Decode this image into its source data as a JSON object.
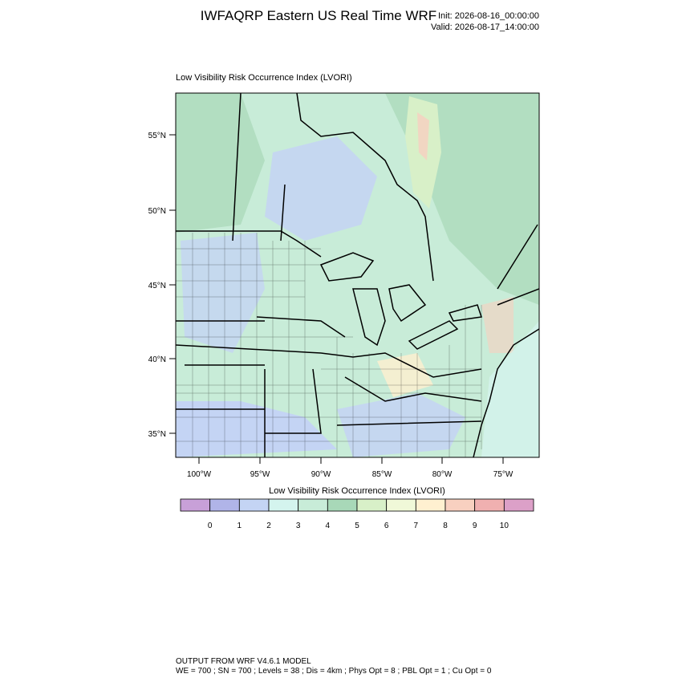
{
  "header": {
    "title": "IWFAQRP Eastern US Real Time WRF",
    "init": "Init: 2026-08-16_00:00:00",
    "valid": "Valid: 2026-08-17_14:00:00"
  },
  "map": {
    "title": "Low Visibility Risk Occurrence Index   (LVORI)",
    "lat_labels": [
      "55°N",
      "50°N",
      "45°N",
      "40°N",
      "35°N"
    ],
    "lon_labels": [
      "100°W",
      "95°W",
      "90°W",
      "85°W",
      "80°W",
      "75°W"
    ]
  },
  "colorbar": {
    "title": "Low Visibility Risk Occurrence Index  (LVORI)",
    "colors": [
      "#c8a0d8",
      "#b0b4e8",
      "#c4d4f4",
      "#d4f4ee",
      "#c8ecd8",
      "#a8d8b8",
      "#d8f0c8",
      "#f0f8d8",
      "#fff0d0",
      "#f8d0c0",
      "#f0b0b0",
      "#dca0c8"
    ],
    "labels": [
      0,
      1,
      2,
      3,
      4,
      5,
      6,
      7,
      8,
      9,
      10
    ]
  },
  "footer": {
    "model": "OUTPUT FROM WRF V4.6.1 MODEL",
    "settings": "WE = 700 ; SN = 700 ; Levels = 38 ; Dis = 4km ; Phys Opt = 8 ; PBL Opt = 1 ; Cu Opt = 0"
  }
}
